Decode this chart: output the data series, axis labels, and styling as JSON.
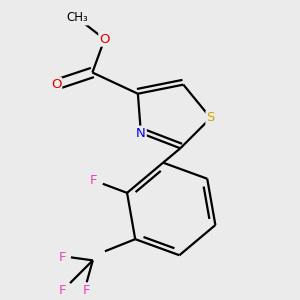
{
  "bg_color": "#ebebeb",
  "atom_colors": {
    "C": "#000000",
    "N": "#0000ee",
    "O": "#dd0000",
    "S": "#ccaa00",
    "F": "#ee44bb"
  },
  "font_size": 9.5,
  "bond_lw": 1.6,
  "dbo": 0.018
}
